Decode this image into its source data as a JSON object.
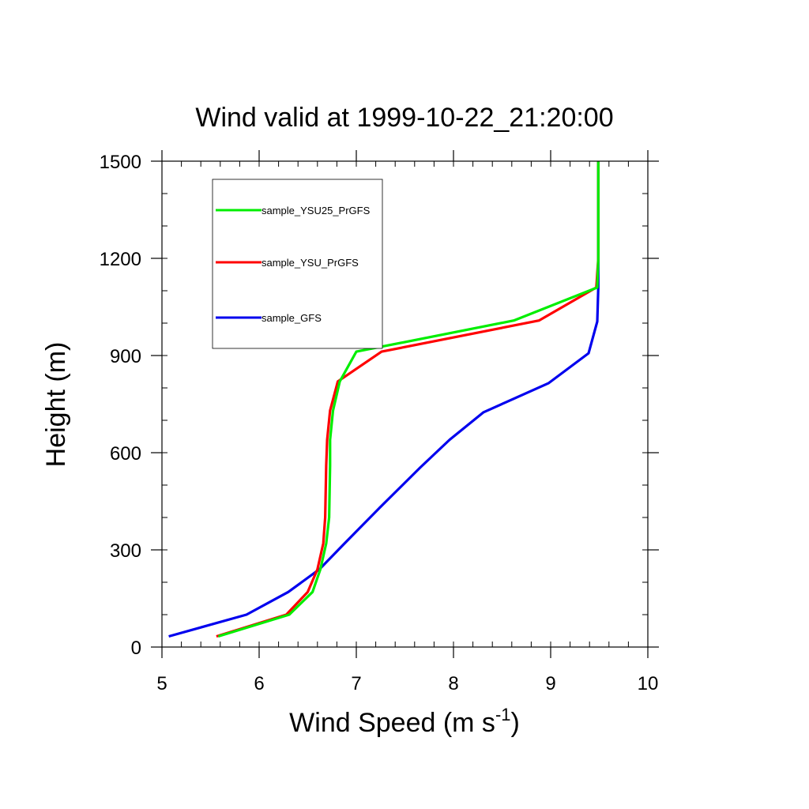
{
  "chart_data": {
    "type": "line",
    "title": "Wind valid at 1999-10-22_21:20:00",
    "xlabel": "Wind Speed (m s",
    "xlabel_superscript": "-1",
    "xlabel_suffix": ")",
    "ylabel": "Height (m)",
    "xlim": [
      5,
      10
    ],
    "ylim": [
      0,
      1500
    ],
    "xticks": [
      5,
      6,
      7,
      8,
      9,
      10
    ],
    "yticks": [
      0,
      300,
      600,
      900,
      1200,
      1500
    ],
    "x_minor_step": 0.2,
    "y_minor_step": 100,
    "grid": false,
    "legend_position": "top-left",
    "series": [
      {
        "name": "sample_YSU25_PrGFS",
        "color": "#00ee00",
        "points": [
          [
            5.58,
            33
          ],
          [
            6.31,
            100
          ],
          [
            6.55,
            170
          ],
          [
            6.63,
            240
          ],
          [
            6.69,
            320
          ],
          [
            6.72,
            400
          ],
          [
            6.73,
            560
          ],
          [
            6.73,
            640
          ],
          [
            6.76,
            730
          ],
          [
            6.83,
            820
          ],
          [
            7.0,
            912
          ],
          [
            8.62,
            1008
          ],
          [
            9.48,
            1110
          ],
          [
            9.49,
            1200
          ],
          [
            9.49,
            1500
          ]
        ]
      },
      {
        "name": "sample_YSU_PrGFS",
        "color": "#ff0000",
        "points": [
          [
            5.56,
            33
          ],
          [
            6.28,
            100
          ],
          [
            6.5,
            170
          ],
          [
            6.6,
            240
          ],
          [
            6.66,
            320
          ],
          [
            6.68,
            400
          ],
          [
            6.69,
            560
          ],
          [
            6.7,
            640
          ],
          [
            6.73,
            730
          ],
          [
            6.81,
            820
          ],
          [
            7.26,
            912
          ],
          [
            8.88,
            1008
          ],
          [
            9.47,
            1110
          ],
          [
            9.49,
            1200
          ],
          [
            9.49,
            1500
          ]
        ]
      },
      {
        "name": "sample_GFS",
        "color": "#0000ee",
        "points": [
          [
            5.07,
            33
          ],
          [
            5.87,
            100
          ],
          [
            6.3,
            170
          ],
          [
            6.62,
            240
          ],
          [
            6.88,
            320
          ],
          [
            7.24,
            430
          ],
          [
            7.66,
            555
          ],
          [
            7.96,
            640
          ],
          [
            8.31,
            725
          ],
          [
            8.98,
            815
          ],
          [
            9.39,
            907
          ],
          [
            9.48,
            1005
          ],
          [
            9.49,
            1110
          ],
          [
            9.49,
            1200
          ],
          [
            9.49,
            1500
          ]
        ]
      }
    ]
  }
}
